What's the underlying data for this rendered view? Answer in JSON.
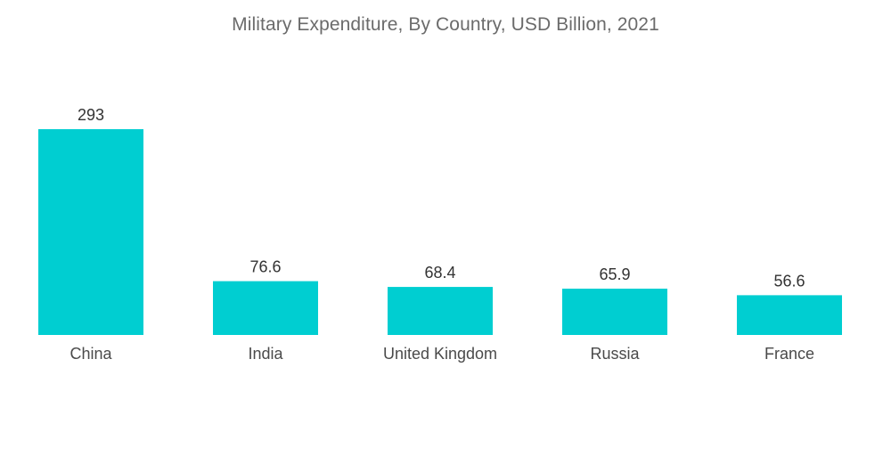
{
  "chart_data": {
    "type": "bar",
    "title": "Military Expenditure, By Country, USD Billion, 2021",
    "categories": [
      "China",
      "India",
      "United Kingdom",
      "Russia",
      "France"
    ],
    "values": [
      293,
      76.6,
      68.4,
      65.9,
      56.6
    ],
    "value_labels": [
      "293",
      "76.6",
      "68.4",
      "65.9",
      "56.6"
    ],
    "xlabel": "",
    "ylabel": "",
    "ylim": [
      0,
      293
    ],
    "grid": false,
    "legend": "none",
    "bar_color": "#00CED1"
  }
}
